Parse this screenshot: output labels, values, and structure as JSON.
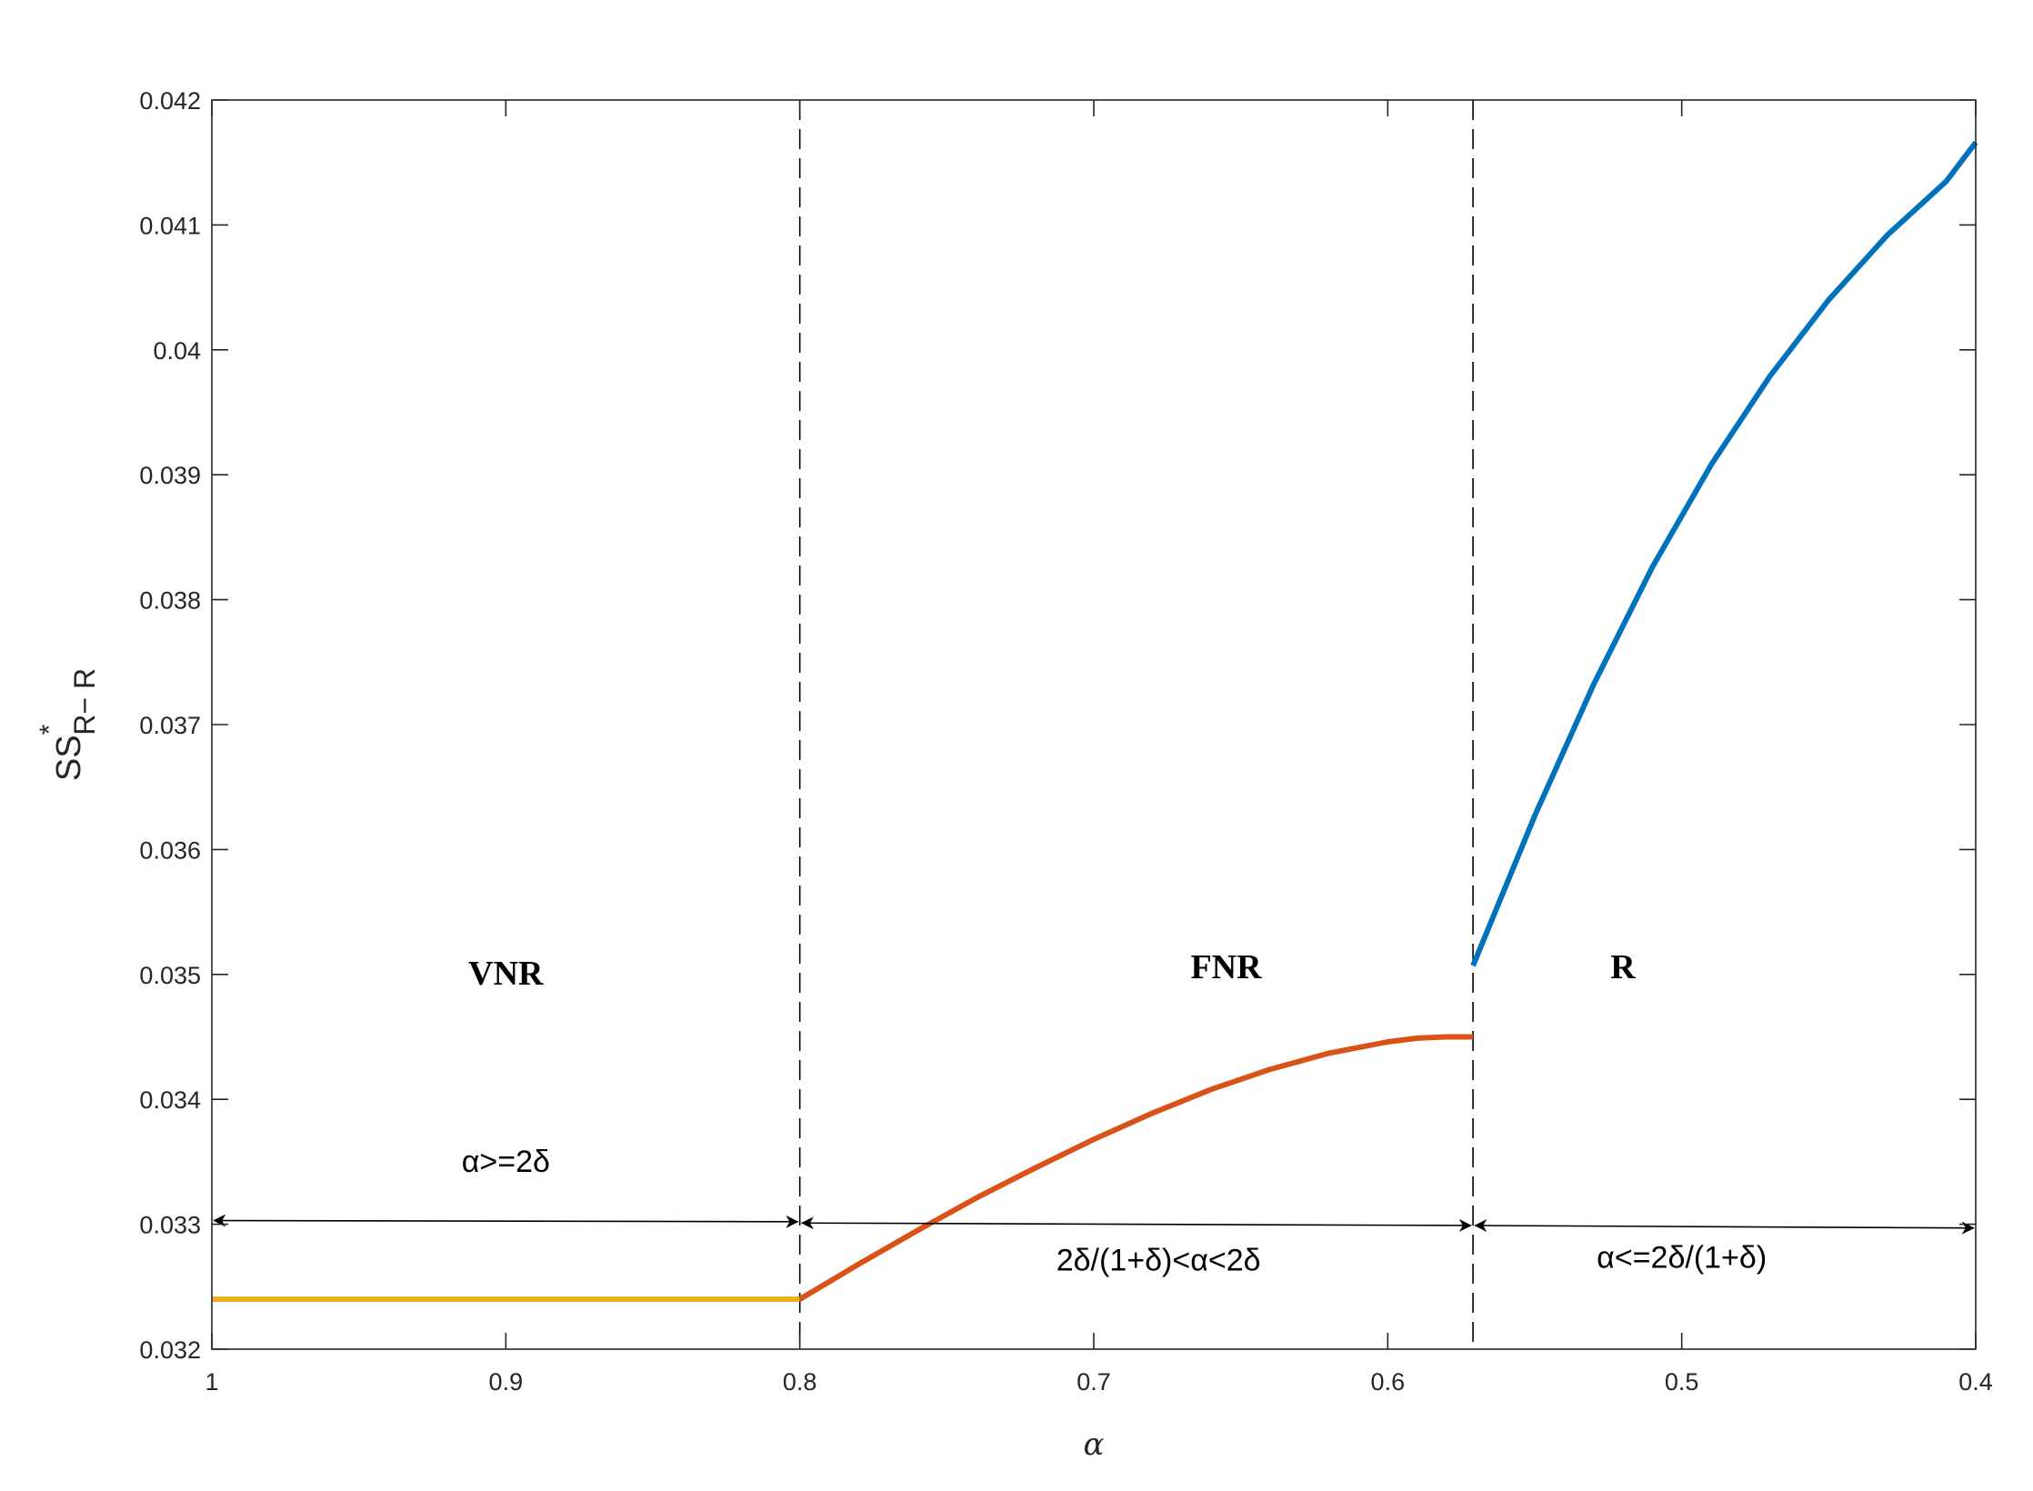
{
  "chart_data": {
    "type": "line",
    "xlabel": "α",
    "ylabel": {
      "base": "SS",
      "sup": "*",
      "sub": "R− R"
    },
    "xlim": [
      1,
      0.4
    ],
    "x_reversed": true,
    "ylim": [
      0.032,
      0.042
    ],
    "xticks": [
      1,
      0.9,
      0.8,
      0.7,
      0.6,
      0.5,
      0.4
    ],
    "xtick_labels": [
      "1",
      "0.9",
      "0.8",
      "0.7",
      "0.6",
      "0.5",
      "0.4"
    ],
    "yticks": [
      0.032,
      0.033,
      0.034,
      0.035,
      0.036,
      0.037,
      0.038,
      0.039,
      0.04,
      0.041,
      0.042
    ],
    "ytick_labels": [
      "0.032",
      "0.033",
      "0.034",
      "0.035",
      "0.036",
      "0.037",
      "0.038",
      "0.039",
      "0.04",
      "0.041",
      "0.042"
    ],
    "grid": false,
    "series": [
      {
        "color": "#EDB120",
        "x": [
          1,
          0.8
        ],
        "y": [
          0.0324,
          0.0324
        ]
      },
      {
        "color": "#D95319",
        "x": [
          0.8,
          0.78,
          0.76,
          0.74,
          0.72,
          0.7,
          0.68,
          0.66,
          0.64,
          0.62,
          0.6,
          0.59,
          0.58,
          0.571
        ],
        "y": [
          0.0324,
          0.03268,
          0.03295,
          0.03321,
          0.03345,
          0.03368,
          0.03389,
          0.03408,
          0.03424,
          0.03437,
          0.03446,
          0.03449,
          0.0345,
          0.0345
        ]
      },
      {
        "color": "#0072BD",
        "x": [
          0.571,
          0.55,
          0.53,
          0.51,
          0.49,
          0.47,
          0.45,
          0.43,
          0.41,
          0.4
        ],
        "y": [
          0.03507,
          0.03627,
          0.03732,
          0.03826,
          0.03908,
          0.03979,
          0.0404,
          0.04092,
          0.04135,
          0.04166
        ]
      }
    ],
    "boundaries": [
      0.8,
      0.571
    ],
    "regions": [
      {
        "label": "VNR",
        "condition": "α>=2δ",
        "x_from": 1,
        "x_to": 0.8
      },
      {
        "label": "FNR",
        "condition": "2δ/(1+δ)<α<2δ",
        "x_from": 0.8,
        "x_to": 0.571
      },
      {
        "label": "R",
        "condition": "α<=2δ/(1+δ)",
        "x_from": 0.571,
        "x_to": 0.4
      }
    ]
  }
}
